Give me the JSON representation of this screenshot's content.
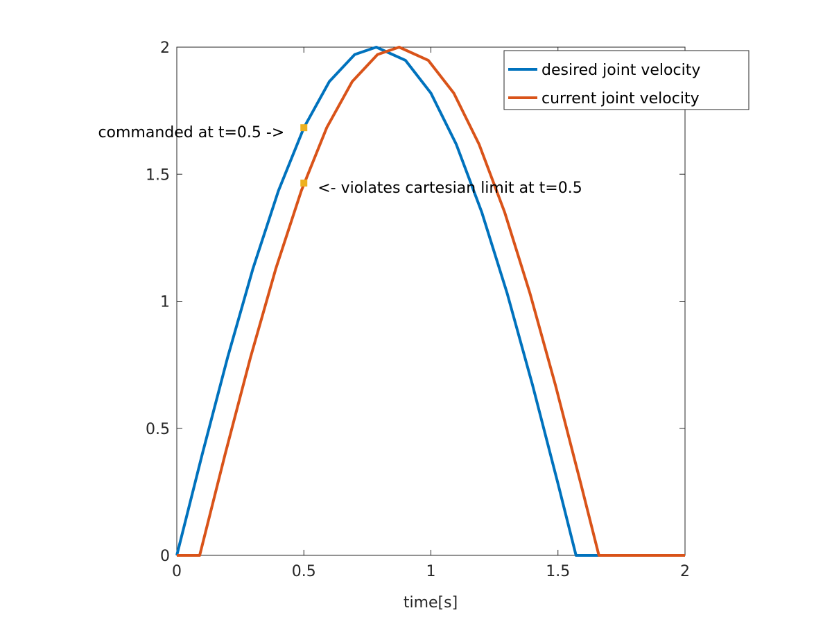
{
  "chart_data": {
    "type": "line",
    "title": "",
    "xlabel": "time[s]",
    "ylabel": "",
    "xlim": [
      0,
      2
    ],
    "ylim": [
      0,
      2
    ],
    "xticks": [
      "0",
      "0.5",
      "1",
      "1.5",
      "2"
    ],
    "yticks": [
      "0",
      "0.5",
      "1",
      "1.5",
      "2"
    ],
    "grid": false,
    "legend_position": "top-right",
    "series": [
      {
        "name": "desired joint velocity",
        "color": "#0072BD",
        "x": [
          0,
          0.1,
          0.2,
          0.3,
          0.4,
          0.5,
          0.6,
          0.7,
          0.785,
          0.9,
          1.0,
          1.1,
          1.2,
          1.3,
          1.4,
          1.5,
          1.571,
          1.65,
          2.0
        ],
        "y": [
          0,
          0.397,
          0.779,
          1.129,
          1.435,
          1.683,
          1.864,
          1.971,
          2.0,
          1.948,
          1.819,
          1.617,
          1.351,
          1.031,
          0.67,
          0.282,
          0,
          0,
          0
        ]
      },
      {
        "name": "current joint velocity",
        "color": "#D95319",
        "x": [
          0,
          0.09,
          0.19,
          0.29,
          0.39,
          0.49,
          0.59,
          0.69,
          0.79,
          0.875,
          0.99,
          1.09,
          1.19,
          1.29,
          1.39,
          1.49,
          1.59,
          1.661,
          2.0
        ],
        "y": [
          0,
          0,
          0.397,
          0.779,
          1.129,
          1.435,
          1.683,
          1.864,
          1.971,
          2.0,
          1.948,
          1.819,
          1.617,
          1.351,
          1.031,
          0.67,
          0.282,
          0,
          0
        ]
      }
    ],
    "markers": [
      {
        "x": 0.5,
        "y": 1.683,
        "color": "#EDB120"
      },
      {
        "x": 0.5,
        "y": 1.465,
        "color": "#EDB120"
      }
    ],
    "annotations": [
      {
        "text": "commanded at t=0.5 ->",
        "x": 0.5,
        "y": 1.683,
        "anchor": "left-of-point"
      },
      {
        "text": "<- violates cartesian limit at t=0.5",
        "x": 0.5,
        "y": 1.465,
        "anchor": "right-of-point"
      }
    ]
  }
}
